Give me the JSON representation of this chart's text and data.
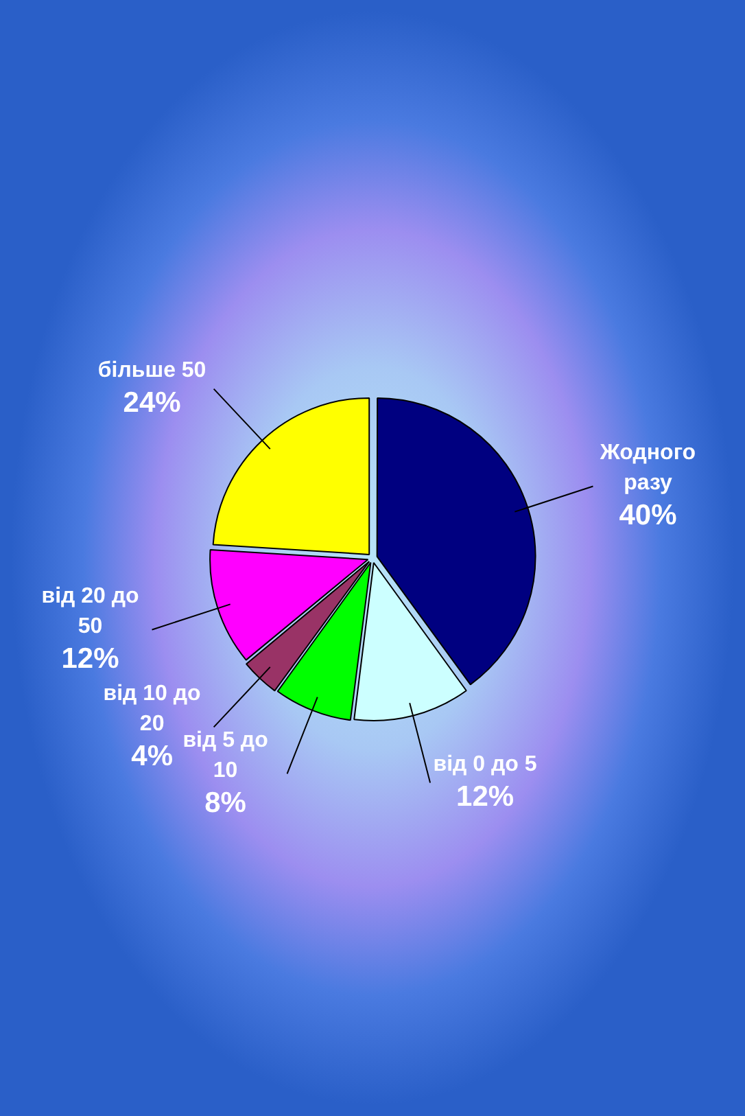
{
  "chart_data": {
    "type": "pie",
    "categories": [
      "Жодного разу",
      "від 0 до 5",
      "від 5 до 10",
      "від 10 до 20",
      "від 20 до 50",
      "більше 50"
    ],
    "values": [
      40,
      12,
      8,
      4,
      12,
      24
    ],
    "value_labels": [
      "40%",
      "12%",
      "8%",
      "4%",
      "12%",
      "24%"
    ],
    "colors": [
      "#000080",
      "#ccffff",
      "#00ff00",
      "#993366",
      "#ff00ff",
      "#ffff00"
    ],
    "legend": false
  }
}
